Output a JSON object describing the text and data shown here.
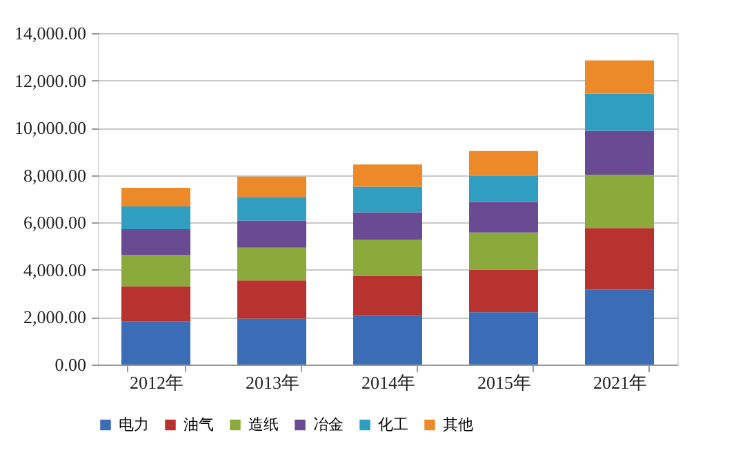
{
  "chart_data": {
    "type": "bar",
    "stacked": true,
    "categories": [
      "2012年",
      "2013年",
      "2014年",
      "2015年",
      "2021年"
    ],
    "series": [
      {
        "name": "电力",
        "color": "#3a6db5",
        "values": [
          1830,
          1940,
          2080,
          2210,
          3170
        ]
      },
      {
        "name": "油气",
        "color": "#b83230",
        "values": [
          1470,
          1610,
          1670,
          1790,
          2600
        ]
      },
      {
        "name": "造纸",
        "color": "#8aab3c",
        "values": [
          1320,
          1390,
          1530,
          1580,
          2250
        ]
      },
      {
        "name": "冶金",
        "color": "#6a4a93",
        "values": [
          1100,
          1140,
          1150,
          1290,
          1850
        ]
      },
      {
        "name": "化工",
        "color": "#2f9ec0",
        "values": [
          960,
          1000,
          1080,
          1110,
          1580
        ]
      },
      {
        "name": "其他",
        "color": "#ec8a2a",
        "values": [
          790,
          860,
          940,
          1040,
          1400
        ]
      }
    ],
    "ylim": [
      0,
      14000
    ],
    "yticks": [
      {
        "value": 0,
        "label": "0.00"
      },
      {
        "value": 2000,
        "label": "2,000.00"
      },
      {
        "value": 4000,
        "label": "4,000.00"
      },
      {
        "value": 6000,
        "label": "6,000.00"
      },
      {
        "value": 8000,
        "label": "8,000.00"
      },
      {
        "value": 10000,
        "label": "10,000.00"
      },
      {
        "value": 12000,
        "label": "12,000.00"
      },
      {
        "value": 14000,
        "label": "14,000.00"
      }
    ],
    "grid": "y",
    "legend": "bottom"
  }
}
